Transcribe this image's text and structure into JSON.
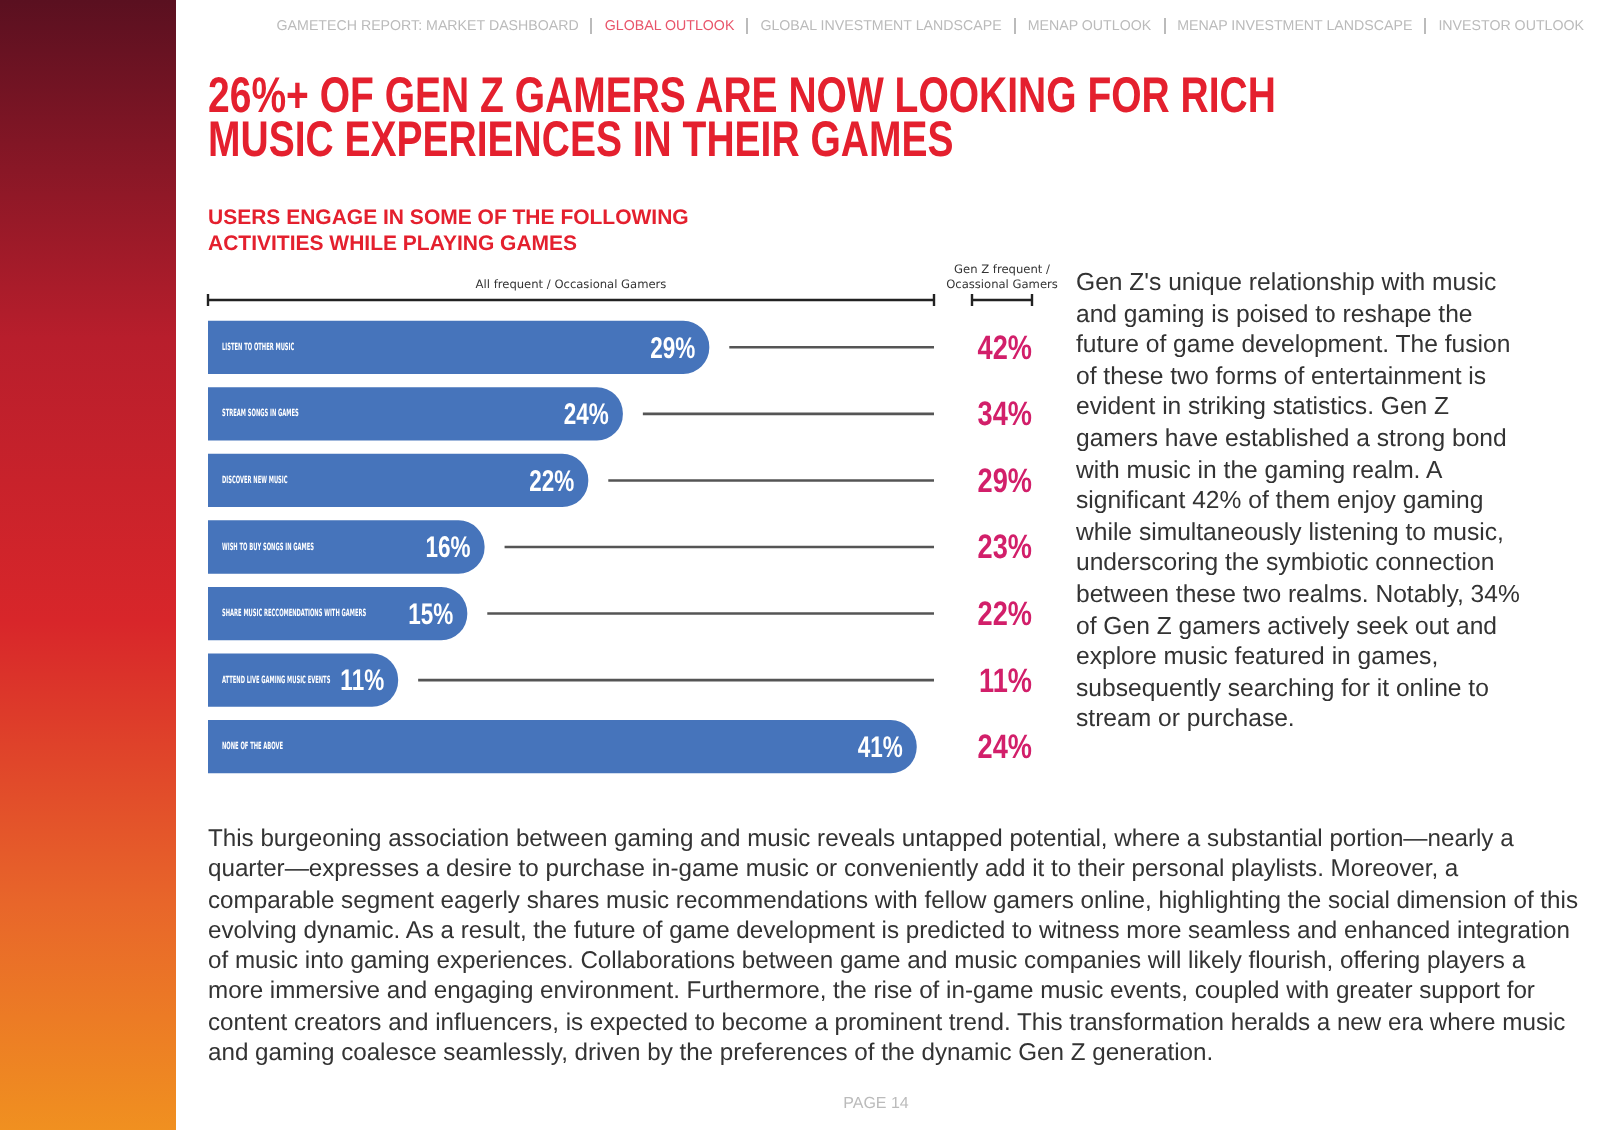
{
  "chart_data": [
    {
      "type": "bar",
      "orientation": "horizontal",
      "title": "26%+ OF GEN Z GAMERS ARE NOW LOOKING FOR RICH MUSIC EXPERIENCES IN THEIR GAMES",
      "subtitle": "USERS ENGAGE IN SOME OF THE FOLLOWING ACTIVITIES WHILE PLAYING GAMES",
      "categories": [
        "LISTEN TO OTHER MUSIC",
        "STREAM SONGS IN GAMES",
        "DISCOVER NEW MUSIC",
        "WISH TO BUY SONGS IN GAMES",
        "SHARE MUSIC RECCOMENDATIONS WITH GAMERS",
        "ATTEND LIVE GAMING MUSIC EVENTS",
        "NONE OF THE ABOVE"
      ],
      "series": [
        {
          "name": "All frequent / Occasional Gamers",
          "color": "#4674bb",
          "values": [
            29,
            24,
            22,
            16,
            15,
            11,
            41
          ],
          "value_labels": [
            "29%",
            "24%",
            "22%",
            "16%",
            "15%",
            "11%",
            "41%"
          ]
        }
      ],
      "xlim": [
        0,
        42
      ],
      "tick_labels": false,
      "grid": "y",
      "legend": "top",
      "annotations": [
        "GAMETECH REPORT:  MARKET DASHBOARD",
        "GLOBAL OUTLOOK",
        "GLOBAL INVESTMENT LANDSCAPE",
        "MENAP OUTLOOK",
        "MENAP INVESTMENT LANDSCAPE",
        "INVESTOR OUTLOOK",
        "Gen Z's unique relationship with music and gaming is poised to reshape the future of game development. The fusion of these two forms of entertainment is evident in striking statistics. Gen Z gamers have established a strong bond with music in the gaming realm. A significant 42% of them enjoy gaming while simultaneously listening to music, underscoring the symbiotic connection between these two realms. Notably, 34% of Gen Z gamers actively seek out and explore music featured in games, subsequently searching for it online to stream or purchase.",
        "This burgeoning association between gaming and music reveals untapped potential, where a substantial portion—nearly a quarter—expresses a desire to purchase in-game music or conveniently add it to their personal playlists. Moreover, a comparable segment eagerly shares music recommendations with fellow gamers online, highlighting the social dimension of this evolving dynamic. As a result, the future of game development is predicted to witness more seamless and enhanced integration of music into gaming experiences. Collaborations between game and music companies will likely flourish, offering players a more immersive and engaging environment. Furthermore, the rise of in-game music events, coupled with greater support for content creators and influencers, is expected to become a prominent trend. This transformation heralds a new era where music and gaming coalesce seamlessly, driven by the preferences of the dynamic Gen Z generation.",
        "PAGE 14"
      ]
    },
    {
      "type": "other",
      "title": "Gen Z frequent / Ocassional Gamers",
      "categories": [
        null,
        null,
        null,
        null,
        null,
        null,
        null
      ],
      "color": "#d21f6a",
      "values": [
        42,
        34,
        29,
        23,
        22,
        11,
        24
      ],
      "value_labels": [
        "42%",
        "34%",
        "29%",
        "23%",
        "22%",
        "11%",
        "24%"
      ]
    }
  ]
}
